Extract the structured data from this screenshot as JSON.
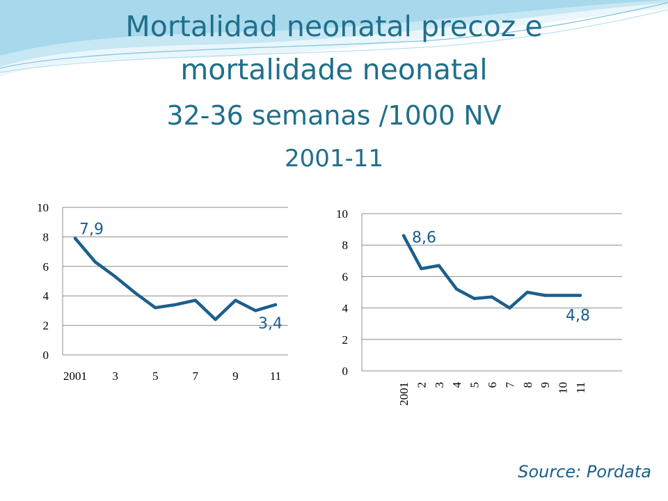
{
  "title": {
    "line1": "Mortalidad neonatal precoz e",
    "line2": "mortalidade neonatal",
    "line3": "32-36 semanas /1000 NV",
    "line4": "2001-11"
  },
  "source": "Source:  Pordata",
  "colors": {
    "line": "#1b5f8c",
    "title": "#1f6f8b",
    "grid": "#8c8c8c"
  },
  "chart_data": [
    {
      "type": "line",
      "x": [
        2001,
        2002,
        2003,
        2004,
        2005,
        2006,
        2007,
        2008,
        2009,
        2010,
        2011
      ],
      "tick_labels": [
        "2001",
        "3",
        "5",
        "7",
        "9",
        "11"
      ],
      "tick_positions": [
        2001,
        2003,
        2005,
        2007,
        2009,
        2011
      ],
      "values": [
        7.9,
        6.3,
        5.3,
        4.2,
        3.2,
        3.4,
        3.7,
        2.4,
        3.7,
        3.0,
        3.4
      ],
      "ylim": [
        0,
        10
      ],
      "yticks": [
        0,
        2,
        4,
        6,
        8,
        10
      ],
      "annotations": [
        {
          "x": 2001,
          "text": "7,9"
        },
        {
          "x": 2011,
          "text": "3,4"
        }
      ],
      "grid": true
    },
    {
      "type": "line",
      "x": [
        2001,
        2002,
        2003,
        2004,
        2005,
        2006,
        2007,
        2008,
        2009,
        2010,
        2011
      ],
      "tick_labels": [
        "2001",
        "2",
        "3",
        "4",
        "5",
        "6",
        "7",
        "8",
        "9",
        "10",
        "11"
      ],
      "tick_positions": [
        2001,
        2002,
        2003,
        2004,
        2005,
        2006,
        2007,
        2008,
        2009,
        2010,
        2011
      ],
      "values": [
        8.6,
        6.5,
        6.7,
        5.2,
        4.6,
        4.7,
        4.0,
        5.0,
        4.8,
        4.8,
        4.8
      ],
      "ylim": [
        0,
        10
      ],
      "yticks": [
        0,
        2,
        4,
        6,
        8,
        10
      ],
      "annotations": [
        {
          "x": 2001,
          "text": "8,6"
        },
        {
          "x": 2011,
          "text": "4,8"
        }
      ],
      "grid": true
    }
  ]
}
